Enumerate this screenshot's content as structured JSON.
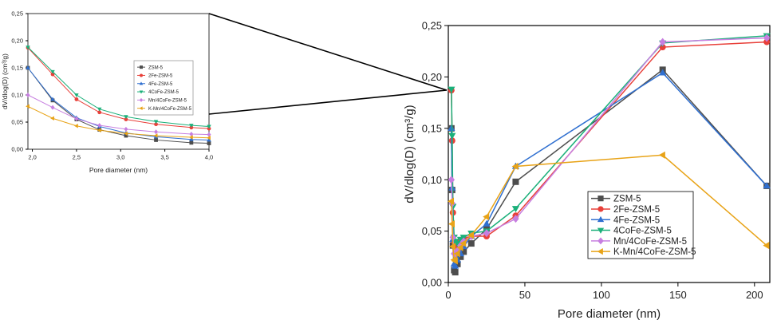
{
  "colors": {
    "ZSM-5": "#4d4d4d",
    "2Fe-ZSM-5": "#e8403a",
    "4Fe-ZSM-5": "#2f6fd0",
    "4CoFe-ZSM-5": "#1bb07a",
    "Mn/4CoFe-ZSM-5": "#c77fe0",
    "K-Mn/4CoFe-ZSM-5": "#e8a317"
  },
  "markers": {
    "ZSM-5": "square",
    "2Fe-ZSM-5": "circle",
    "4Fe-ZSM-5": "triangle-up",
    "4CoFe-ZSM-5": "triangle-down",
    "Mn/4CoFe-ZSM-5": "diamond",
    "K-Mn/4CoFe-ZSM-5": "triangle-left"
  },
  "chart_data": [
    {
      "id": "inset",
      "type": "line",
      "xlabel": "Pore diameter (nm)",
      "ylabel": "dV/dlog(D) (cm³/g)",
      "xlim": [
        1.95,
        4.0
      ],
      "ylim": [
        0,
        0.25
      ],
      "xticks": [
        2.0,
        2.5,
        3.0,
        3.5,
        4.0
      ],
      "xtick_labels": [
        "2,0",
        "2,5",
        "3,0",
        "3,5",
        "4,0"
      ],
      "yticks": [
        0,
        0.05,
        0.1,
        0.15,
        0.2,
        0.25
      ],
      "ytick_labels": [
        "0,00",
        "0,05",
        "0,10",
        "0,15",
        "0,20",
        "0,25"
      ],
      "legend": "right",
      "grid": false,
      "series": [
        {
          "name": "ZSM-5",
          "x": [
            1.95,
            2.23,
            2.5,
            2.76,
            3.06,
            3.4,
            3.8,
            4.0
          ],
          "y": [
            0.15,
            0.09,
            0.055,
            0.036,
            0.025,
            0.017,
            0.012,
            0.011
          ]
        },
        {
          "name": "2Fe-ZSM-5",
          "x": [
            1.95,
            2.23,
            2.5,
            2.76,
            3.06,
            3.4,
            3.8,
            4.0
          ],
          "y": [
            0.187,
            0.138,
            0.092,
            0.068,
            0.055,
            0.046,
            0.04,
            0.038
          ]
        },
        {
          "name": "4Fe-ZSM-5",
          "x": [
            1.95,
            2.23,
            2.5,
            2.76,
            3.06,
            3.4,
            3.8,
            4.0
          ],
          "y": [
            0.15,
            0.092,
            0.058,
            0.042,
            0.03,
            0.023,
            0.018,
            0.017
          ]
        },
        {
          "name": "4CoFe-ZSM-5",
          "x": [
            1.95,
            2.23,
            2.5,
            2.76,
            3.06,
            3.4,
            3.8,
            4.0
          ],
          "y": [
            0.188,
            0.143,
            0.1,
            0.074,
            0.06,
            0.051,
            0.044,
            0.042
          ]
        },
        {
          "name": "Mn/4CoFe-ZSM-5",
          "x": [
            1.95,
            2.23,
            2.5,
            2.76,
            3.06,
            3.4,
            3.8,
            4.0
          ],
          "y": [
            0.1,
            0.077,
            0.056,
            0.044,
            0.037,
            0.032,
            0.028,
            0.027
          ]
        },
        {
          "name": "K-Mn/4CoFe-ZSM-5",
          "x": [
            1.95,
            2.23,
            2.5,
            2.76,
            3.06,
            3.4,
            3.8,
            4.0
          ],
          "y": [
            0.079,
            0.057,
            0.043,
            0.035,
            0.029,
            0.025,
            0.022,
            0.021
          ]
        }
      ]
    },
    {
      "id": "main",
      "type": "line",
      "xlabel": "Pore diameter (nm)",
      "ylabel": "dV/dlog(D) (cm³/g)",
      "xlim": [
        0,
        210
      ],
      "ylim": [
        0,
        0.25
      ],
      "xticks": [
        0,
        50,
        100,
        150,
        200
      ],
      "xtick_labels": [
        "0",
        "50",
        "100",
        "150",
        "200"
      ],
      "yticks": [
        0,
        0.05,
        0.1,
        0.15,
        0.2,
        0.25
      ],
      "ytick_labels": [
        "0,00",
        "0,05",
        "0,10",
        "0,15",
        "0,20",
        "0,25"
      ],
      "legend": "center-right",
      "grid": false,
      "series": [
        {
          "name": "ZSM-5",
          "x": [
            2.0,
            2.5,
            3.0,
            3.8,
            4.5,
            6,
            8,
            10,
            15,
            25,
            44,
            140,
            208
          ],
          "y": [
            0.15,
            0.09,
            0.036,
            0.012,
            0.01,
            0.018,
            0.025,
            0.03,
            0.038,
            0.052,
            0.098,
            0.207,
            0.094
          ]
        },
        {
          "name": "2Fe-ZSM-5",
          "x": [
            2.0,
            2.5,
            3.0,
            3.8,
            4.5,
            6,
            8,
            10,
            15,
            25,
            44,
            140,
            208
          ],
          "y": [
            0.187,
            0.138,
            0.068,
            0.04,
            0.036,
            0.038,
            0.041,
            0.043,
            0.045,
            0.045,
            0.065,
            0.229,
            0.234
          ]
        },
        {
          "name": "4Fe-ZSM-5",
          "x": [
            2.0,
            2.5,
            3.0,
            3.8,
            4.5,
            6,
            8,
            10,
            15,
            25,
            44,
            140,
            208
          ],
          "y": [
            0.15,
            0.092,
            0.042,
            0.018,
            0.016,
            0.022,
            0.028,
            0.035,
            0.045,
            0.057,
            0.113,
            0.204,
            0.094
          ]
        },
        {
          "name": "4CoFe-ZSM-5",
          "x": [
            2.0,
            2.5,
            3.0,
            3.8,
            4.5,
            6,
            8,
            10,
            15,
            25,
            44,
            140,
            208
          ],
          "y": [
            0.188,
            0.143,
            0.074,
            0.044,
            0.04,
            0.038,
            0.042,
            0.044,
            0.048,
            0.05,
            0.072,
            0.233,
            0.24
          ]
        },
        {
          "name": "Mn/4CoFe-ZSM-5",
          "x": [
            2.0,
            2.5,
            3.0,
            3.8,
            4.5,
            6,
            8,
            10,
            15,
            25,
            44,
            140,
            208
          ],
          "y": [
            0.1,
            0.077,
            0.044,
            0.028,
            0.027,
            0.031,
            0.036,
            0.04,
            0.045,
            0.048,
            0.062,
            0.234,
            0.238
          ]
        },
        {
          "name": "K-Mn/4CoFe-ZSM-5",
          "x": [
            2.0,
            2.5,
            3.0,
            3.8,
            4.5,
            6,
            8,
            10,
            15,
            25,
            44,
            140,
            208
          ],
          "y": [
            0.079,
            0.057,
            0.035,
            0.022,
            0.021,
            0.028,
            0.034,
            0.038,
            0.046,
            0.064,
            0.113,
            0.124,
            0.036
          ]
        }
      ]
    }
  ]
}
